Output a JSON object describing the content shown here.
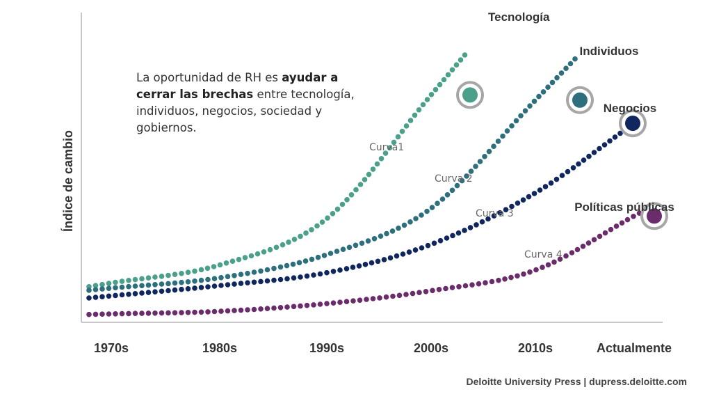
{
  "chart_data": {
    "type": "line",
    "ylabel": "Índice de cambio",
    "xlabel": "",
    "categories": [
      "1970s",
      "1980s",
      "1990s",
      "2000s",
      "2010s",
      "Actualmente"
    ],
    "series": [
      {
        "name": "Tecnología",
        "curve_label": "Curva1",
        "color": "#4aa08a",
        "values": [
          0.05,
          0.12,
          0.3,
          0.78,
          null,
          null
        ]
      },
      {
        "name": "Individuos",
        "curve_label": "Curva 2",
        "color": "#2d6f7d",
        "values": [
          0.03,
          0.07,
          0.16,
          0.34,
          0.76,
          null
        ]
      },
      {
        "name": "Negocios",
        "curve_label": "Curva 3",
        "color": "#10265e",
        "values": [
          0.0,
          0.04,
          0.09,
          0.2,
          0.4,
          0.67
        ]
      },
      {
        "name": "Políticas públicas",
        "curve_label": "Curva 4",
        "color": "#6b2c6c",
        "values": [
          -0.07,
          -0.06,
          -0.03,
          0.02,
          0.1,
          0.31
        ]
      }
    ]
  },
  "callout": {
    "part1": "La oportunidad de RH es ",
    "part2": "ayudar a cerrar las brechas",
    "part3": " entre tecnología, individuos, negocios, sociedad y gobiernos."
  },
  "footer": "Deloitte University Press  |  dupress.deloitte.com"
}
